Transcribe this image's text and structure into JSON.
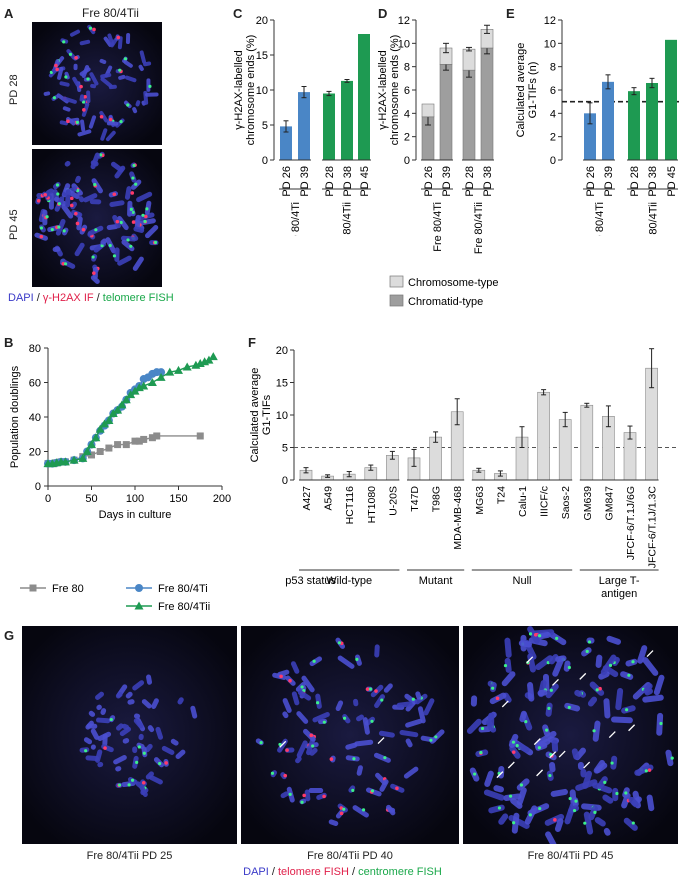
{
  "panels": {
    "A": {
      "letter": "A",
      "title": "Fre 80/4Tii",
      "label_top": "PD 28",
      "label_bottom": "PD 45",
      "legend": [
        {
          "text": "DAPI",
          "color": "#3a3ac8"
        },
        {
          "text": " / ",
          "color": "#222222"
        },
        {
          "text": "γ-H2AX IF",
          "color": "#e0204a"
        },
        {
          "text": " / ",
          "color": "#222222"
        },
        {
          "text": "telomere FISH",
          "color": "#1aa84a"
        }
      ]
    },
    "B": {
      "letter": "B"
    },
    "C": {
      "letter": "C"
    },
    "D": {
      "letter": "D"
    },
    "E": {
      "letter": "E"
    },
    "F": {
      "letter": "F"
    },
    "G": {
      "letter": "G",
      "captions": [
        "Fre 80/4Tii PD 25",
        "Fre 80/4Tii PD 40",
        "Fre 80/4Tii PD 45"
      ],
      "legend": [
        {
          "text": "DAPI",
          "color": "#3a3ac8"
        },
        {
          "text": " / ",
          "color": "#222222"
        },
        {
          "text": "telomere FISH",
          "color": "#e0204a"
        },
        {
          "text": " / ",
          "color": "#222222"
        },
        {
          "text": "centromere FISH",
          "color": "#1aa84a"
        }
      ]
    }
  },
  "chart_data": [
    {
      "id": "C",
      "type": "bar",
      "ylabel": "γ-H2AX-labelled chromosome ends (%)",
      "ylim": [
        0,
        20
      ],
      "yticks": [
        0,
        5,
        10,
        15,
        20
      ],
      "categories": [
        "PD 26",
        "PD 39",
        "PD 28",
        "PD 38",
        "PD 45"
      ],
      "values": [
        4.8,
        9.7,
        9.5,
        11.3,
        18.0
      ],
      "errors": [
        0.8,
        0.8,
        0.3,
        0.2,
        0
      ],
      "colors": [
        "#4a86c6",
        "#4a86c6",
        "#1e9a52",
        "#1e9a52",
        "#1e9a52"
      ],
      "groups": [
        {
          "label": "Fre 80/4Ti",
          "members": [
            0,
            1
          ]
        },
        {
          "label": "Fre 80/4Tii",
          "members": [
            2,
            3,
            4
          ]
        }
      ]
    },
    {
      "id": "D",
      "type": "bar",
      "stacked": true,
      "ylabel": "γ-H2AX-labelled chromosome ends (%)",
      "ylim": [
        0,
        12
      ],
      "yticks": [
        0,
        2,
        4,
        6,
        8,
        10,
        12
      ],
      "categories": [
        "PD 26",
        "PD 39",
        "PD 28",
        "PD 38"
      ],
      "series": [
        {
          "name": "Chromatid-type",
          "color": "#9e9e9e",
          "values": [
            3.7,
            8.2,
            7.7,
            9.6
          ],
          "errors": [
            0.7,
            0.5,
            0.6,
            0.5
          ]
        },
        {
          "name": "Chromosome-type",
          "color": "#dcdcdc",
          "values": [
            1.1,
            1.4,
            1.8,
            1.6
          ],
          "errors": [
            0,
            0.4,
            0.15,
            0.35
          ]
        }
      ],
      "groups": [
        {
          "label": "Fre 80/4Ti",
          "members": [
            0,
            1
          ]
        },
        {
          "label": "Fre 80/4Tii",
          "members": [
            2,
            3
          ]
        }
      ],
      "legend": [
        {
          "label": "Chromosome-type",
          "color": "#dcdcdc"
        },
        {
          "label": "Chromatid-type",
          "color": "#9e9e9e"
        }
      ]
    },
    {
      "id": "E",
      "type": "bar",
      "ylabel": "Calculated average G1-TIFs (n)",
      "ylim": [
        0,
        12
      ],
      "yticks": [
        0,
        2,
        4,
        6,
        8,
        10,
        12
      ],
      "threshold": 5,
      "categories": [
        "PD 26",
        "PD 39",
        "PD 28",
        "PD 38",
        "PD 45"
      ],
      "values": [
        4.0,
        6.7,
        5.9,
        6.6,
        10.3
      ],
      "errors": [
        0.9,
        0.6,
        0.3,
        0.4,
        0
      ],
      "colors": [
        "#4a86c6",
        "#4a86c6",
        "#1e9a52",
        "#1e9a52",
        "#1e9a52"
      ],
      "groups": [
        {
          "label": "Fre 80/4Ti",
          "members": [
            0,
            1
          ]
        },
        {
          "label": "Fre 80/4Tii",
          "members": [
            2,
            3,
            4
          ]
        }
      ]
    },
    {
      "id": "B",
      "type": "line",
      "xlabel": "Days in culture",
      "ylabel": "Population doublings",
      "xlim": [
        0,
        200
      ],
      "ylim": [
        0,
        80
      ],
      "xticks": [
        0,
        50,
        100,
        150,
        200
      ],
      "yticks": [
        0,
        20,
        40,
        60,
        80
      ],
      "series": [
        {
          "name": "Fre 80",
          "color": "#8c8c8c",
          "marker": "square",
          "x": [
            0,
            3,
            7,
            10,
            15,
            20,
            30,
            40,
            50,
            60,
            70,
            80,
            90,
            100,
            105,
            110,
            120,
            125,
            175
          ],
          "y": [
            13,
            13,
            13,
            13.5,
            14,
            14,
            15,
            17,
            18,
            20,
            22,
            24,
            24,
            26,
            26,
            27,
            28,
            29,
            29
          ]
        },
        {
          "name": "Fre 80/4Ti",
          "color": "#4a86c6",
          "marker": "circle",
          "x": [
            0,
            5,
            10,
            15,
            20,
            30,
            40,
            45,
            50,
            55,
            60,
            65,
            70,
            75,
            80,
            85,
            90,
            95,
            100,
            105,
            110,
            115,
            120,
            125,
            130
          ],
          "y": [
            13,
            13,
            13.5,
            14,
            14,
            15,
            16,
            20,
            24,
            28,
            32,
            35,
            38,
            42,
            44,
            46,
            50,
            54,
            56,
            58,
            62,
            63,
            65,
            66,
            66
          ]
        },
        {
          "name": "Fre 80/4Tii",
          "color": "#1e9a52",
          "marker": "triangle",
          "x": [
            0,
            5,
            10,
            15,
            20,
            30,
            40,
            45,
            50,
            55,
            60,
            65,
            70,
            75,
            80,
            85,
            90,
            95,
            100,
            105,
            110,
            120,
            130,
            140,
            150,
            160,
            170,
            175,
            180,
            185,
            190
          ],
          "y": [
            13,
            13,
            13.5,
            14,
            14,
            15,
            16,
            20,
            24,
            28,
            33,
            36,
            38,
            42,
            44,
            47,
            50,
            53,
            55,
            57,
            58,
            60,
            63,
            66,
            67,
            69,
            70,
            71,
            72,
            73,
            75
          ]
        }
      ]
    },
    {
      "id": "F",
      "type": "bar",
      "ylabel": "Calculated average G1-TIFs",
      "ylim": [
        0,
        20
      ],
      "yticks": [
        0,
        5,
        10,
        15,
        20
      ],
      "threshold": 5,
      "categories": [
        "A427",
        "A549",
        "HCT116",
        "HT1080",
        "U-20S",
        "T47D",
        "T98G",
        "MDA-MB-468",
        "MG63",
        "T24",
        "Calu-1",
        "IIICF/c",
        "Saos-2",
        "GM639",
        "GM847",
        "JFCF-6/T.1J/6G",
        "JFCF-6/T.1J/1.3C"
      ],
      "values": [
        1.5,
        0.6,
        0.9,
        1.9,
        3.8,
        3.4,
        6.6,
        10.5,
        1.5,
        1.0,
        6.6,
        13.5,
        9.3,
        11.5,
        9.8,
        7.3,
        17.2
      ],
      "errors": [
        0.4,
        0.2,
        0.4,
        0.4,
        0.6,
        1.3,
        0.8,
        2.0,
        0.3,
        0.4,
        1.6,
        0.4,
        1.1,
        0.3,
        1.6,
        1.0,
        3.0
      ],
      "colors": [
        "#dcdcdc"
      ],
      "groups_title": "p53 status",
      "groups": [
        {
          "label": "Wild-type",
          "members": [
            0,
            4
          ]
        },
        {
          "label": "Mutant",
          "members": [
            5,
            7
          ]
        },
        {
          "label": "Null",
          "members": [
            8,
            12
          ]
        },
        {
          "label": "Large T-\nantigen",
          "members": [
            13,
            16
          ]
        }
      ]
    }
  ]
}
